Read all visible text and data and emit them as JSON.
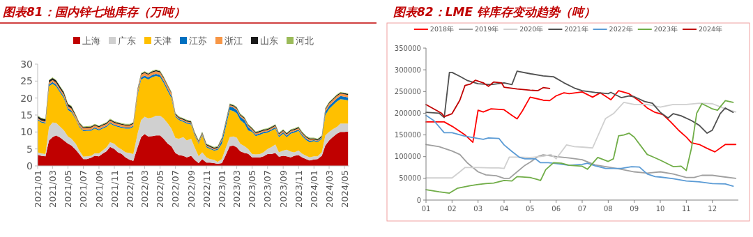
{
  "chart_data": [
    {
      "type": "area",
      "stacked": true,
      "title": "图表81：国内锌七地库存（万吨）",
      "legend": "top",
      "ylim": [
        0,
        30
      ],
      "yticks": [
        0,
        5,
        10,
        15,
        20,
        25,
        30
      ],
      "xlim": [
        "2021-01-01",
        "2024-05-20"
      ],
      "xticks": [
        {
          "value": "2021-01",
          "label": "2021/01"
        },
        {
          "value": "2021-03",
          "label": "2021/03"
        },
        {
          "value": "2021-05",
          "label": "2021/05"
        },
        {
          "value": "2021-07",
          "label": "2021/07"
        },
        {
          "value": "2021-09",
          "label": "2021/09"
        },
        {
          "value": "2021-11",
          "label": "2021/11"
        },
        {
          "value": "2022-01",
          "label": "2022/01"
        },
        {
          "value": "2022-03",
          "label": "2022/03"
        },
        {
          "value": "2022-05",
          "label": "2022/05"
        },
        {
          "value": "2022-07",
          "label": "2022/07"
        },
        {
          "value": "2022-09",
          "label": "2022/09"
        },
        {
          "value": "2022-11",
          "label": "2022/11"
        },
        {
          "value": "2023-01",
          "label": "2023/01"
        },
        {
          "value": "2023-03",
          "label": "2023/03"
        },
        {
          "value": "2023-05",
          "label": "2023/05"
        },
        {
          "value": "2023-07",
          "label": "2023/07"
        },
        {
          "value": "2023-09",
          "label": "2023/09"
        },
        {
          "value": "2023-11",
          "label": "2023/11"
        },
        {
          "value": "2024-01",
          "label": "2024/01"
        },
        {
          "value": "2024-03",
          "label": "2024/03"
        },
        {
          "value": "2024-05",
          "label": "2024/05"
        }
      ],
      "x": [
        "2021-01-01",
        "2021-01-15",
        "2021-02-01",
        "2021-02-15",
        "2021-03-01",
        "2021-03-15",
        "2021-04-01",
        "2021-04-15",
        "2021-05-01",
        "2021-05-15",
        "2021-06-01",
        "2021-06-15",
        "2021-07-01",
        "2021-07-15",
        "2021-08-01",
        "2021-08-15",
        "2021-09-01",
        "2021-09-15",
        "2021-10-01",
        "2021-10-15",
        "2021-11-01",
        "2021-11-15",
        "2021-12-01",
        "2021-12-15",
        "2022-01-01",
        "2022-01-15",
        "2022-02-01",
        "2022-02-15",
        "2022-03-01",
        "2022-03-15",
        "2022-04-01",
        "2022-04-15",
        "2022-05-01",
        "2022-05-15",
        "2022-06-01",
        "2022-06-15",
        "2022-07-01",
        "2022-07-15",
        "2022-08-01",
        "2022-08-15",
        "2022-09-01",
        "2022-09-15",
        "2022-10-01",
        "2022-10-15",
        "2022-11-01",
        "2022-11-15",
        "2022-12-01",
        "2022-12-15",
        "2023-01-01",
        "2023-01-15",
        "2023-02-01",
        "2023-02-15",
        "2023-03-01",
        "2023-03-15",
        "2023-04-01",
        "2023-04-15",
        "2023-05-01",
        "2023-05-15",
        "2023-06-01",
        "2023-06-15",
        "2023-07-01",
        "2023-07-15",
        "2023-08-01",
        "2023-08-15",
        "2023-09-01",
        "2023-09-15",
        "2023-10-01",
        "2023-10-15",
        "2023-11-01",
        "2023-11-15",
        "2023-12-01",
        "2023-12-15",
        "2024-01-01",
        "2024-01-15",
        "2024-02-01",
        "2024-02-15",
        "2024-03-01",
        "2024-03-15",
        "2024-04-01",
        "2024-04-15",
        "2024-05-01",
        "2024-05-15"
      ],
      "series": [
        {
          "name": "上海",
          "color": "#c00000",
          "values": [
            3.3,
            3.0,
            2.8,
            7.5,
            8.5,
            9.0,
            8.3,
            7.5,
            6.6,
            6.0,
            4.8,
            3.5,
            2.0,
            2.0,
            2.4,
            3.0,
            2.8,
            3.6,
            4.3,
            5.6,
            5.0,
            4.0,
            3.5,
            2.5,
            1.8,
            1.5,
            5.5,
            8.5,
            9.4,
            8.7,
            8.8,
            9.0,
            9.0,
            8.0,
            6.5,
            5.8,
            3.8,
            3.2,
            3.0,
            2.5,
            3.0,
            1.8,
            0.8,
            2.0,
            1.0,
            1.0,
            0.8,
            0.6,
            0.8,
            3.0,
            5.8,
            6.0,
            5.5,
            4.3,
            3.8,
            3.6,
            2.5,
            2.5,
            2.5,
            2.8,
            3.5,
            3.5,
            3.8,
            2.7,
            3.0,
            2.8,
            2.5,
            3.0,
            3.2,
            2.5,
            2.0,
            1.6,
            1.9,
            2.0,
            3.0,
            6.0,
            7.5,
            8.5,
            9.5,
            10.0,
            10.0,
            10.1
          ]
        },
        {
          "name": "广东",
          "color": "#d0d0d0",
          "values": [
            0.7,
            0.7,
            0.7,
            4.0,
            4.3,
            3.7,
            3.2,
            3.0,
            2.1,
            2.0,
            1.7,
            1.0,
            0.7,
            0.8,
            0.6,
            0.7,
            0.9,
            0.9,
            1.2,
            1.4,
            1.5,
            1.5,
            1.3,
            1.5,
            2.0,
            2.0,
            4.0,
            5.0,
            5.1,
            5.3,
            5.5,
            5.8,
            5.8,
            6.0,
            6.0,
            5.2,
            4.4,
            4.8,
            5.5,
            5.0,
            5.0,
            3.7,
            2.0,
            2.0,
            1.5,
            1.0,
            1.0,
            0.6,
            1.2,
            2.0,
            2.7,
            2.7,
            2.8,
            2.2,
            2.0,
            1.4,
            1.0,
            0.9,
            1.0,
            1.2,
            1.5,
            2.0,
            2.5,
            1.3,
            1.5,
            2.0,
            1.7,
            1.0,
            1.3,
            1.1,
            1.0,
            0.9,
            0.9,
            0.8,
            1.0,
            3.0,
            2.5,
            2.3,
            2.0,
            2.5,
            2.5,
            2.4
          ]
        },
        {
          "name": "天津",
          "color": "#ffc000",
          "values": [
            9.5,
            9.1,
            9.0,
            12.0,
            11.4,
            10.8,
            10.0,
            9.5,
            7.8,
            7.8,
            7.3,
            7.0,
            7.5,
            7.5,
            7.4,
            7.3,
            6.8,
            6.5,
            6.0,
            5.5,
            5.3,
            6.0,
            6.4,
            7.0,
            7.2,
            8.0,
            11.5,
            12.0,
            11.5,
            11.5,
            11.9,
            11.7,
            11.4,
            10.5,
            9.5,
            9.0,
            6.3,
            5.5,
            4.5,
            5.0,
            4.2,
            3.5,
            3.7,
            5.0,
            3.0,
            3.0,
            2.7,
            3.5,
            4.5,
            6.0,
            8.0,
            7.5,
            7.2,
            7.0,
            6.7,
            5.5,
            6.5,
            5.4,
            5.7,
            5.6,
            4.8,
            4.8,
            4.7,
            4.5,
            5.0,
            3.7,
            5.3,
            5.8,
            5.8,
            5.2,
            4.6,
            4.5,
            4.5,
            4.2,
            4.0,
            6.0,
            6.8,
            7.0,
            7.5,
            7.2,
            7.0,
            6.8
          ]
        },
        {
          "name": "江苏",
          "color": "#0070c0",
          "values": [
            0.3,
            0.3,
            0.3,
            0.5,
            0.5,
            0.5,
            0.5,
            0.5,
            0.5,
            0.5,
            0.3,
            0.3,
            0.3,
            0.3,
            0.3,
            0.3,
            0.3,
            0.3,
            0.3,
            0.3,
            0.3,
            0.3,
            0.3,
            0.3,
            0.3,
            0.3,
            0.6,
            0.6,
            0.6,
            0.6,
            0.6,
            0.6,
            0.6,
            0.6,
            0.6,
            0.6,
            0.3,
            0.3,
            0.3,
            0.3,
            0.3,
            0.3,
            0.3,
            0.3,
            0.3,
            0.3,
            0.3,
            0.3,
            1.0,
            1.0,
            1.0,
            1.0,
            1.0,
            1.0,
            1.0,
            1.0,
            0.4,
            0.4,
            0.4,
            0.4,
            0.4,
            0.4,
            0.4,
            0.4,
            0.4,
            0.4,
            0.4,
            0.4,
            0.4,
            0.4,
            0.4,
            0.4,
            0.3,
            0.3,
            0.3,
            0.9,
            0.9,
            0.9,
            0.9,
            0.9,
            0.9,
            0.9
          ]
        },
        {
          "name": "浙江",
          "color": "#f79646",
          "values": [
            0.3,
            0.3,
            0.3,
            0.6,
            0.6,
            0.6,
            0.6,
            0.6,
            0.6,
            0.6,
            0.6,
            0.6,
            0.6,
            0.6,
            0.6,
            0.6,
            0.6,
            0.6,
            0.6,
            0.6,
            0.6,
            0.6,
            0.6,
            0.6,
            0.6,
            0.6,
            0.8,
            0.8,
            0.8,
            0.8,
            0.8,
            0.8,
            0.8,
            0.8,
            0.8,
            0.8,
            0.3,
            0.3,
            0.3,
            0.3,
            0.3,
            0.3,
            0.3,
            0.3,
            0.3,
            0.3,
            0.3,
            0.3,
            0.4,
            0.4,
            0.4,
            0.4,
            0.4,
            0.4,
            0.4,
            0.4,
            0.4,
            0.4,
            0.4,
            0.4,
            0.4,
            0.4,
            0.4,
            0.4,
            0.4,
            0.4,
            0.4,
            0.4,
            0.4,
            0.4,
            0.4,
            0.4,
            0.2,
            0.2,
            0.2,
            0.7,
            0.7,
            0.7,
            0.7,
            0.7,
            0.7,
            0.7
          ]
        },
        {
          "name": "山东",
          "color": "#1a1a1a",
          "values": [
            0.6,
            0.6,
            0.6,
            0.6,
            0.6,
            0.6,
            0.6,
            0.6,
            0.6,
            0.6,
            0.3,
            0.3,
            0.3,
            0.3,
            0.3,
            0.3,
            0.3,
            0.3,
            0.3,
            0.3,
            0.3,
            0.3,
            0.3,
            0.3,
            0.3,
            0.3,
            0.3,
            0.3,
            0.3,
            0.3,
            0.3,
            0.3,
            0.3,
            0.3,
            0.3,
            0.3,
            0.3,
            0.3,
            0.3,
            0.3,
            0.3,
            0.3,
            0.3,
            0.3,
            0.3,
            0.3,
            0.3,
            0.3,
            0.3,
            0.3,
            0.3,
            0.3,
            0.3,
            0.3,
            0.3,
            0.3,
            0.3,
            0.3,
            0.3,
            0.3,
            0.3,
            0.3,
            0.3,
            0.3,
            0.3,
            0.3,
            0.3,
            0.3,
            0.3,
            0.3,
            0.3,
            0.3,
            0.3,
            0.3,
            0.3,
            0.3,
            0.3,
            0.3,
            0.3,
            0.3,
            0.3,
            0.3
          ]
        },
        {
          "name": "河北",
          "color": "#9bbb59",
          "values": [
            0.2,
            0.2,
            0.2,
            0.2,
            0.2,
            0.2,
            0.2,
            0.2,
            0.2,
            0.2,
            0.2,
            0.2,
            0.2,
            0.2,
            0.2,
            0.2,
            0.2,
            0.2,
            0.2,
            0.2,
            0.2,
            0.2,
            0.2,
            0.2,
            0.2,
            0.2,
            0.2,
            0.2,
            0.2,
            0.2,
            0.2,
            0.2,
            0.2,
            0.2,
            0.2,
            0.2,
            0.2,
            0.2,
            0.2,
            0.2,
            0.2,
            0.2,
            0.2,
            0.2,
            0.2,
            0.2,
            0.2,
            0.2,
            0.2,
            0.2,
            0.2,
            0.2,
            0.2,
            0.2,
            0.2,
            0.2,
            0.2,
            0.2,
            0.2,
            0.2,
            0.2,
            0.2,
            0.2,
            0.2,
            0.2,
            0.2,
            0.2,
            0.2,
            0.2,
            0.2,
            0.2,
            0.2,
            0.2,
            0.2,
            0.2,
            0.2,
            0.2,
            0.2,
            0.2,
            0.2,
            0.2,
            0.2
          ]
        }
      ]
    },
    {
      "type": "line",
      "title": "图表82：LME 锌库存变动趋势（吨）",
      "legend": "top",
      "ylim": [
        0,
        350000
      ],
      "yticks": [
        0,
        50000,
        100000,
        150000,
        200000,
        250000,
        300000,
        350000
      ],
      "xlim": [
        1,
        13
      ],
      "xticks": [
        {
          "value": 1,
          "label": "01"
        },
        {
          "value": 2,
          "label": "02"
        },
        {
          "value": 3,
          "label": "03"
        },
        {
          "value": 4,
          "label": "04"
        },
        {
          "value": 5,
          "label": "05"
        },
        {
          "value": 6,
          "label": "06"
        },
        {
          "value": 7,
          "label": "07"
        },
        {
          "value": 8,
          "label": "08"
        },
        {
          "value": 9,
          "label": "09"
        },
        {
          "value": 10,
          "label": "10"
        },
        {
          "value": 11,
          "label": "11"
        },
        {
          "value": 12,
          "label": "12"
        }
      ],
      "series": [
        {
          "name": "2018年",
          "color": "#ff0000",
          "x": [
            1,
            1.5,
            1.7,
            2,
            2.5,
            2.8,
            2.9,
            3,
            3.2,
            3.5,
            4,
            4.3,
            4.5,
            4.7,
            5,
            5.5,
            5.75,
            6,
            6.3,
            6.5,
            7,
            7.4,
            7.7,
            8.1,
            8.4,
            8.8,
            9.2,
            9.5,
            9.8,
            10.1,
            10.4,
            10.7,
            11,
            11.2,
            11.5,
            11.8,
            12.1,
            12.5,
            12.9
          ],
          "values": [
            180000,
            180000,
            180000,
            170000,
            150000,
            133000,
            170000,
            207000,
            203000,
            210000,
            208000,
            195000,
            187000,
            205000,
            237000,
            230000,
            229000,
            240000,
            247000,
            245000,
            249000,
            237000,
            247000,
            231000,
            252000,
            245000,
            228000,
            212000,
            202000,
            197000,
            180000,
            161000,
            145000,
            132000,
            128000,
            119000,
            111000,
            128000,
            128000
          ]
        },
        {
          "name": "2019年",
          "color": "#a0a0a0",
          "x": [
            1,
            1.5,
            2,
            2.3,
            2.6,
            3,
            3.3,
            3.7,
            4,
            4.2,
            4.5,
            4.8,
            5,
            5.3,
            5.5,
            6,
            6.5,
            7,
            7.5,
            8,
            8.5,
            9,
            9.5,
            10,
            10.5,
            11,
            11.3,
            11.6,
            12,
            12.5,
            12.9
          ],
          "values": [
            128000,
            123000,
            113000,
            105000,
            85000,
            65000,
            58000,
            56000,
            50000,
            50000,
            65000,
            80000,
            87000,
            100000,
            104000,
            100000,
            97000,
            93000,
            81000,
            76000,
            71000,
            65000,
            62000,
            65000,
            60000,
            52000,
            52000,
            57000,
            57000,
            53000,
            50000
          ]
        },
        {
          "name": "2020年",
          "color": "#d0d0d0",
          "x": [
            1,
            2,
            2.3,
            2.5,
            3,
            3.5,
            3.8,
            4,
            4.2,
            4.5,
            5,
            5.5,
            5.8,
            6,
            6.4,
            6.7,
            7,
            7.4,
            7.9,
            8.2,
            8.6,
            9,
            9.5,
            10,
            10.5,
            11,
            11.5,
            12,
            12.5,
            12.9
          ],
          "values": [
            51000,
            51000,
            65000,
            75000,
            75000,
            74000,
            74000,
            73000,
            99000,
            99000,
            98000,
            101000,
            105000,
            95000,
            127000,
            123000,
            122000,
            120000,
            188000,
            199000,
            225000,
            220000,
            220000,
            214000,
            220000,
            220000,
            223000,
            222000,
            210000,
            203000
          ]
        },
        {
          "name": "2021年",
          "color": "#505050",
          "x": [
            1,
            1.5,
            1.7,
            1.9,
            2,
            2.3,
            2.6,
            3,
            3.5,
            4,
            4.3,
            4.5,
            5,
            5.5,
            5.9,
            6.3,
            6.7,
            7,
            7.5,
            8,
            8.1,
            8.5,
            8.8,
            9,
            9.4,
            9.7,
            10,
            10.3,
            10.5,
            10.8,
            11.2,
            11.5,
            11.8,
            12,
            12.3,
            12.5,
            12.8
          ],
          "values": [
            202000,
            200000,
            190000,
            294000,
            294000,
            285000,
            275000,
            268000,
            266000,
            270000,
            266000,
            297000,
            291000,
            286000,
            284000,
            270000,
            258000,
            252000,
            248000,
            245000,
            248000,
            236000,
            240000,
            238000,
            227000,
            223000,
            202000,
            189000,
            199000,
            194000,
            183000,
            172000,
            154000,
            161000,
            199000,
            212000,
            202000
          ]
        },
        {
          "name": "2022年",
          "color": "#5b9bd5",
          "x": [
            1,
            1.3,
            1.7,
            2,
            2.5,
            3,
            3.2,
            3.4,
            3.8,
            4,
            4.3,
            4.6,
            4.8,
            5.2,
            5.4,
            5.7,
            6,
            6.5,
            7,
            7.2,
            7.5,
            7.9,
            8.5,
            8.9,
            9.2,
            9.5,
            9.8,
            10,
            10.5,
            11,
            11.5,
            12,
            12.5,
            12.8
          ],
          "values": [
            195000,
            183000,
            155000,
            155000,
            147000,
            142000,
            140000,
            143000,
            142000,
            127000,
            112000,
            98000,
            95000,
            95000,
            86000,
            86000,
            84000,
            80000,
            82000,
            85000,
            79000,
            73000,
            73000,
            77000,
            76000,
            60000,
            54000,
            53000,
            49000,
            44000,
            42000,
            38000,
            37000,
            32000
          ]
        },
        {
          "name": "2023年",
          "color": "#70ad47",
          "x": [
            1,
            1.5,
            1.9,
            2.2,
            2.7,
            3,
            3.3,
            3.6,
            4,
            4.3,
            4.5,
            5,
            5.3,
            5.4,
            5.6,
            5.9,
            6.2,
            6.5,
            7,
            7.2,
            7.6,
            8,
            8.2,
            8.4,
            8.6,
            8.8,
            9,
            9.5,
            9.7,
            10,
            10.5,
            10.8,
            11,
            11.2,
            11.4,
            11.6,
            12,
            12.2,
            12.5,
            12.8
          ],
          "values": [
            24000,
            19000,
            16000,
            27000,
            33000,
            36000,
            38000,
            39000,
            45000,
            44000,
            54000,
            52000,
            47000,
            45000,
            70000,
            86000,
            85000,
            80000,
            78000,
            71000,
            98000,
            89000,
            95000,
            148000,
            150000,
            154000,
            145000,
            105000,
            100000,
            92000,
            77000,
            78000,
            68000,
            120000,
            200000,
            222000,
            210000,
            207000,
            229000,
            225000
          ]
        },
        {
          "name": "2024年",
          "color": "#c00000",
          "x": [
            1,
            1.3,
            1.6,
            1.7,
            2,
            2.3,
            2.5,
            2.7,
            2.9,
            3.2,
            3.4,
            3.6,
            3.9,
            4,
            4.5,
            5,
            5.3,
            5.5,
            5.75
          ],
          "values": [
            220000,
            210000,
            200000,
            192000,
            199000,
            230000,
            264000,
            267000,
            276000,
            270000,
            262000,
            272000,
            270000,
            260000,
            256000,
            253000,
            252000,
            259000,
            257000
          ]
        }
      ]
    }
  ]
}
